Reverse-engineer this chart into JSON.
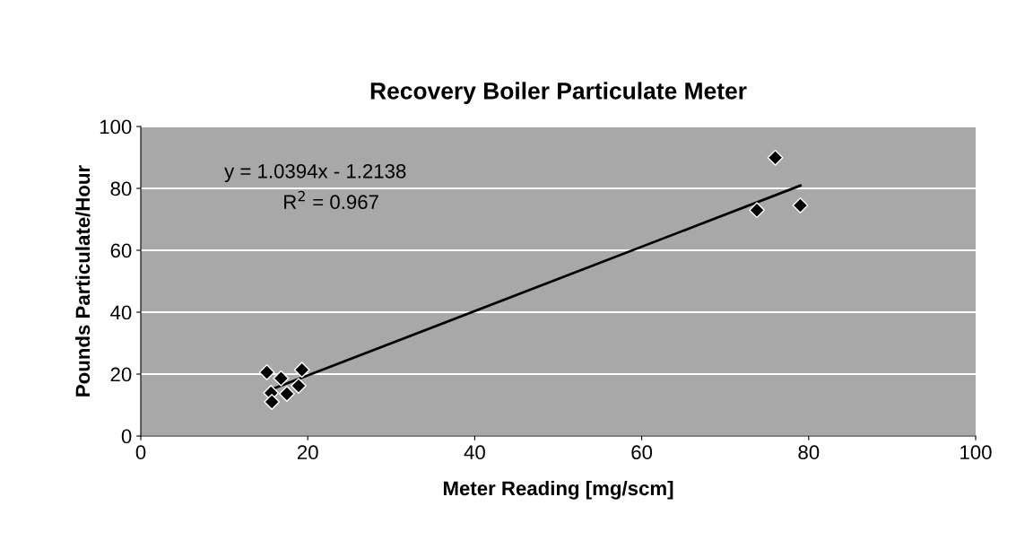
{
  "chart_data": {
    "type": "scatter",
    "title": "Recovery Boiler Particulate Meter",
    "xlabel": "Meter Reading [mg/scm]",
    "ylabel": "Pounds Particulate/Hour",
    "series": [
      {
        "color": "#000000",
        "marker": "diamond",
        "x": [
          15.1,
          19.3,
          15.6,
          17.5,
          18.9,
          15.7,
          16.8,
          76.0,
          73.8,
          79.0
        ],
        "values": [
          20.6,
          21.4,
          13.9,
          13.6,
          16.2,
          11.0,
          18.6,
          89.9,
          73.0,
          74.5
        ]
      },
      {
        "type": "line",
        "color": "#000000",
        "marker": "none",
        "x": [
          15.1,
          79.0
        ],
        "values": [
          14.5,
          80.9
        ]
      }
    ],
    "annotations": [
      "y = 1.0394x - 1.2138",
      "R$^{2}$ = 0.967"
    ],
    "xlim": [
      0,
      100
    ],
    "xticks": [
      0,
      20,
      40,
      60,
      80,
      100
    ],
    "ylim": [
      0,
      100
    ],
    "yticks": [
      0,
      20,
      40,
      60,
      80,
      100
    ],
    "grid": "y",
    "legend": false
  }
}
